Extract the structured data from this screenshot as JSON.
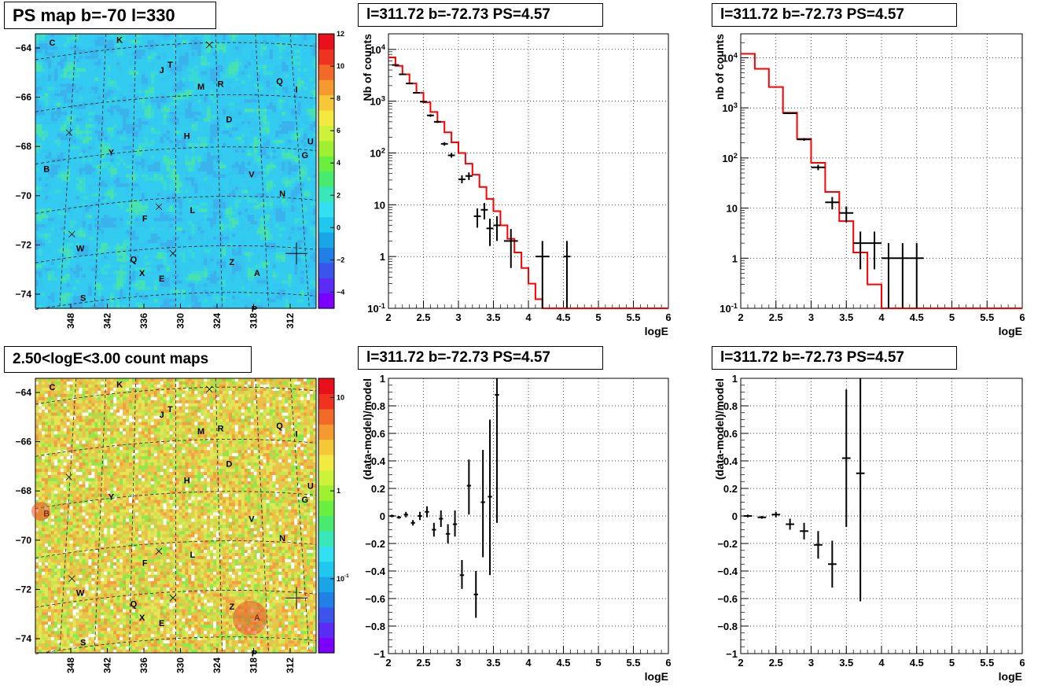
{
  "titles": {
    "map_top": "PS map b=-70 l=330",
    "map_bottom": "2.50<logE<3.00 count maps",
    "spec_mid_top": "l=311.72 b=-72.73 PS=4.57",
    "spec_right_top": "l=311.72 b=-72.73 PS=4.57",
    "resid_mid_bottom": "l=311.72 b=-72.73 PS=4.57",
    "resid_right_bottom": "l=311.72 b=-72.73 PS=4.57"
  },
  "colors": {
    "model": "#ff0000",
    "data": "#000000",
    "map_top_bg": "#33ccf0",
    "map_bottom_bg": "#e2e35a"
  },
  "chart_data": [
    {
      "id": "map-top",
      "type": "heatmap",
      "title": "PS map b=-70 l=330",
      "y_ticks": [
        "-64",
        "-66",
        "-68",
        "-70",
        "-72",
        "-74"
      ],
      "x_ticks": [
        "348",
        "342",
        "336",
        "330",
        "324",
        "318",
        "312"
      ],
      "colorbar_ticks": [
        "12",
        "10",
        "8",
        "6",
        "4",
        "2",
        "0",
        "-2",
        "-4"
      ],
      "colorbar_range": [
        -5,
        12
      ],
      "source_labels": [
        "C",
        "K",
        "J",
        "T",
        "M",
        "R",
        "Q",
        "I",
        "D",
        "H",
        "U",
        "G",
        "Y",
        "B",
        "V",
        "N",
        "F",
        "L",
        "W",
        "Q",
        "X",
        "E",
        "Z",
        "A",
        "S",
        "P"
      ]
    },
    {
      "id": "map-bottom",
      "type": "heatmap",
      "title": "2.50<logE<3.00 count maps",
      "log_scale": true,
      "y_ticks": [
        "-64",
        "-66",
        "-68",
        "-70",
        "-72",
        "-74"
      ],
      "x_ticks": [
        "348",
        "342",
        "336",
        "330",
        "324",
        "318",
        "312"
      ],
      "colorbar_ticks": [
        "10",
        "1",
        "10-1"
      ],
      "source_labels": [
        "C",
        "K",
        "J",
        "T",
        "M",
        "R",
        "Q",
        "I",
        "D",
        "H",
        "U",
        "G",
        "Y",
        "B",
        "V",
        "N",
        "F",
        "L",
        "W",
        "Q",
        "X",
        "E",
        "Z",
        "A",
        "S",
        "P"
      ]
    },
    {
      "id": "spec-mid",
      "type": "line",
      "title": "l=311.72 b=-72.73 PS=4.57",
      "xlabel": "logE",
      "ylabel": "Nb of counts",
      "xlim": [
        2,
        6
      ],
      "ylim": [
        0.1,
        20000
      ],
      "log_y": true,
      "grid": true,
      "x_ticks": [
        "2",
        "2.5",
        "3",
        "3.5",
        "4",
        "4.5",
        "5",
        "5.5",
        "6"
      ],
      "y_ticks": [
        "10-1",
        "1",
        "10",
        "102",
        "103",
        "104"
      ],
      "model_edges": [
        2.0,
        2.1,
        2.2,
        2.3,
        2.4,
        2.5,
        2.6,
        2.7,
        2.8,
        2.9,
        3.0,
        3.1,
        3.2,
        3.3,
        3.4,
        3.5,
        3.6,
        3.7,
        3.8,
        3.9,
        4.0,
        4.1,
        4.2,
        6.0
      ],
      "model_values": [
        7000,
        4800,
        3300,
        2200,
        1450,
        950,
        620,
        400,
        250,
        160,
        100,
        62,
        38,
        22,
        13,
        7.5,
        4,
        2.2,
        1.2,
        0.6,
        0.3,
        0.15,
        0.1
      ],
      "data_points": [
        {
          "x": 2.1,
          "y": 5000,
          "xerr": 0.05,
          "ylo": 4900,
          "yhi": 5100
        },
        {
          "x": 2.2,
          "y": 3300,
          "xerr": 0.05,
          "ylo": 3230,
          "yhi": 3370
        },
        {
          "x": 2.3,
          "y": 2200,
          "xerr": 0.05,
          "ylo": 2150,
          "yhi": 2250
        },
        {
          "x": 2.4,
          "y": 1450,
          "xerr": 0.05,
          "ylo": 1410,
          "yhi": 1490
        },
        {
          "x": 2.5,
          "y": 980,
          "xerr": 0.05,
          "ylo": 950,
          "yhi": 1010
        },
        {
          "x": 2.6,
          "y": 530,
          "xerr": 0.05,
          "ylo": 500,
          "yhi": 560
        },
        {
          "x": 2.7,
          "y": 400,
          "xerr": 0.05,
          "ylo": 380,
          "yhi": 420
        },
        {
          "x": 2.8,
          "y": 150,
          "xerr": 0.05,
          "ylo": 138,
          "yhi": 162
        },
        {
          "x": 2.9,
          "y": 90,
          "xerr": 0.05,
          "ylo": 81,
          "yhi": 99
        },
        {
          "x": 3.05,
          "y": 31,
          "xerr": 0.05,
          "ylo": 26,
          "yhi": 37
        },
        {
          "x": 3.15,
          "y": 36,
          "xerr": 0.05,
          "ylo": 30,
          "yhi": 42
        },
        {
          "x": 3.27,
          "y": 6,
          "xerr": 0.05,
          "ylo": 3.6,
          "yhi": 8.5
        },
        {
          "x": 3.37,
          "y": 8,
          "xerr": 0.05,
          "ylo": 5.2,
          "yhi": 10.8
        },
        {
          "x": 3.45,
          "y": 3.5,
          "xerr": 0.05,
          "ylo": 1.6,
          "yhi": 5.4
        },
        {
          "x": 3.55,
          "y": 4,
          "xerr": 0.05,
          "ylo": 2,
          "yhi": 6
        },
        {
          "x": 3.75,
          "y": 2,
          "xerr": 0.1,
          "ylo": 0.6,
          "yhi": 3.4
        },
        {
          "x": 4.2,
          "y": 1,
          "xerr": 0.1,
          "ylo": 0.1,
          "yhi": 2
        },
        {
          "x": 4.55,
          "y": 1,
          "xerr": 0.05,
          "ylo": 0.1,
          "yhi": 2
        }
      ]
    },
    {
      "id": "spec-right",
      "type": "line",
      "title": "l=311.72 b=-72.73 PS=4.57",
      "xlabel": "logE",
      "ylabel": "nb of counts",
      "xlim": [
        2,
        6
      ],
      "ylim": [
        0.1,
        30000
      ],
      "log_y": true,
      "grid": true,
      "x_ticks": [
        "2",
        "2.5",
        "3",
        "3.5",
        "4",
        "4.5",
        "5",
        "5.5",
        "6"
      ],
      "y_ticks": [
        "10-1",
        "1",
        "10",
        "102",
        "103",
        "104"
      ],
      "model_edges": [
        2.0,
        2.2,
        2.4,
        2.6,
        2.8,
        3.0,
        3.2,
        3.4,
        3.6,
        3.8,
        4.0,
        4.2,
        6.0
      ],
      "model_values": [
        12000,
        6000,
        2600,
        800,
        240,
        80,
        21,
        5.5,
        1.3,
        0.3,
        0.1,
        0.1
      ],
      "data_points": [
        {
          "x": 2.7,
          "y": 780,
          "xerr": 0.1,
          "ylo": 750,
          "yhi": 810
        },
        {
          "x": 2.9,
          "y": 235,
          "xerr": 0.1,
          "ylo": 220,
          "yhi": 250
        },
        {
          "x": 3.1,
          "y": 65,
          "xerr": 0.1,
          "ylo": 57,
          "yhi": 73
        },
        {
          "x": 3.3,
          "y": 13,
          "xerr": 0.1,
          "ylo": 9.4,
          "yhi": 16.6
        },
        {
          "x": 3.5,
          "y": 8,
          "xerr": 0.1,
          "ylo": 5.2,
          "yhi": 10.8
        },
        {
          "x": 3.7,
          "y": 2,
          "xerr": 0.1,
          "ylo": 0.6,
          "yhi": 3.4
        },
        {
          "x": 3.9,
          "y": 2,
          "xerr": 0.1,
          "ylo": 0.6,
          "yhi": 3.4
        },
        {
          "x": 4.1,
          "y": 1,
          "xerr": 0.1,
          "ylo": 0.1,
          "yhi": 2
        },
        {
          "x": 4.3,
          "y": 1,
          "xerr": 0.1,
          "ylo": 0.1,
          "yhi": 2
        },
        {
          "x": 4.5,
          "y": 1,
          "xerr": 0.1,
          "ylo": 0.1,
          "yhi": 2
        }
      ]
    },
    {
      "id": "resid-mid",
      "type": "scatter",
      "title": "l=311.72 b=-72.73 PS=4.57",
      "xlabel": "logE",
      "ylabel": "(data-model)/model",
      "xlim": [
        2,
        6
      ],
      "ylim": [
        -1,
        1
      ],
      "grid": true,
      "x_ticks": [
        "2",
        "2.5",
        "3",
        "3.5",
        "4",
        "4.5",
        "5",
        "5.5",
        "6"
      ],
      "y_ticks": [
        "-1",
        "-0.8",
        "-0.6",
        "-0.4",
        "-0.2",
        "0",
        "0.2",
        "0.4",
        "0.6",
        "0.8",
        "1"
      ],
      "points": [
        {
          "x": 2.05,
          "y": 0.0,
          "xerr": 0.05,
          "ylo": -0.01,
          "yhi": 0.01
        },
        {
          "x": 2.15,
          "y": -0.01,
          "xerr": 0.05,
          "ylo": -0.02,
          "yhi": 0.0
        },
        {
          "x": 2.25,
          "y": 0.01,
          "xerr": 0.05,
          "ylo": -0.01,
          "yhi": 0.03
        },
        {
          "x": 2.35,
          "y": -0.05,
          "xerr": 0.05,
          "ylo": -0.07,
          "yhi": -0.03
        },
        {
          "x": 2.45,
          "y": 0.0,
          "xerr": 0.05,
          "ylo": -0.03,
          "yhi": 0.03
        },
        {
          "x": 2.55,
          "y": 0.03,
          "xerr": 0.05,
          "ylo": -0.01,
          "yhi": 0.07
        },
        {
          "x": 2.65,
          "y": -0.1,
          "xerr": 0.05,
          "ylo": -0.15,
          "yhi": -0.05
        },
        {
          "x": 2.75,
          "y": -0.02,
          "xerr": 0.05,
          "ylo": -0.08,
          "yhi": 0.04
        },
        {
          "x": 2.85,
          "y": -0.13,
          "xerr": 0.05,
          "ylo": -0.2,
          "yhi": -0.06
        },
        {
          "x": 2.95,
          "y": -0.06,
          "xerr": 0.05,
          "ylo": -0.15,
          "yhi": 0.04
        },
        {
          "x": 3.05,
          "y": -0.43,
          "xerr": 0.05,
          "ylo": -0.53,
          "yhi": -0.32
        },
        {
          "x": 3.15,
          "y": 0.22,
          "xerr": 0.05,
          "ylo": 0.01,
          "yhi": 0.41
        },
        {
          "x": 3.25,
          "y": -0.57,
          "xerr": 0.05,
          "ylo": -0.74,
          "yhi": -0.4
        },
        {
          "x": 3.35,
          "y": 0.1,
          "xerr": 0.05,
          "ylo": -0.3,
          "yhi": 0.48
        },
        {
          "x": 3.45,
          "y": 0.14,
          "xerr": 0.05,
          "ylo": -0.43,
          "yhi": 0.7
        },
        {
          "x": 3.55,
          "y": 0.88,
          "xerr": 0.05,
          "ylo": -0.05,
          "yhi": 1.0
        }
      ]
    },
    {
      "id": "resid-right",
      "type": "scatter",
      "title": "l=311.72 b=-72.73 PS=4.57",
      "xlabel": "logE",
      "ylabel": "(data-model)/model",
      "xlim": [
        2,
        6
      ],
      "ylim": [
        -1,
        1
      ],
      "grid": true,
      "x_ticks": [
        "2",
        "2.5",
        "3",
        "3.5",
        "4",
        "4.5",
        "5",
        "5.5",
        "6"
      ],
      "y_ticks": [
        "-1",
        "-0.8",
        "-0.6",
        "-0.4",
        "-0.2",
        "0",
        "0.2",
        "0.4",
        "0.6",
        "0.8",
        "1"
      ],
      "points": [
        {
          "x": 2.1,
          "y": 0.0,
          "xerr": 0.1,
          "ylo": -0.01,
          "yhi": 0.01
        },
        {
          "x": 2.3,
          "y": -0.01,
          "xerr": 0.1,
          "ylo": -0.02,
          "yhi": 0.0
        },
        {
          "x": 2.5,
          "y": 0.01,
          "xerr": 0.1,
          "ylo": -0.01,
          "yhi": 0.03
        },
        {
          "x": 2.7,
          "y": -0.06,
          "xerr": 0.1,
          "ylo": -0.1,
          "yhi": -0.02
        },
        {
          "x": 2.9,
          "y": -0.11,
          "xerr": 0.1,
          "ylo": -0.17,
          "yhi": -0.05
        },
        {
          "x": 3.1,
          "y": -0.21,
          "xerr": 0.1,
          "ylo": -0.31,
          "yhi": -0.11
        },
        {
          "x": 3.3,
          "y": -0.35,
          "xerr": 0.1,
          "ylo": -0.52,
          "yhi": -0.18
        },
        {
          "x": 3.5,
          "y": 0.42,
          "xerr": 0.1,
          "ylo": -0.08,
          "yhi": 0.92
        },
        {
          "x": 3.7,
          "y": 0.31,
          "xerr": 0.1,
          "ylo": -0.62,
          "yhi": 1.0
        }
      ]
    }
  ]
}
